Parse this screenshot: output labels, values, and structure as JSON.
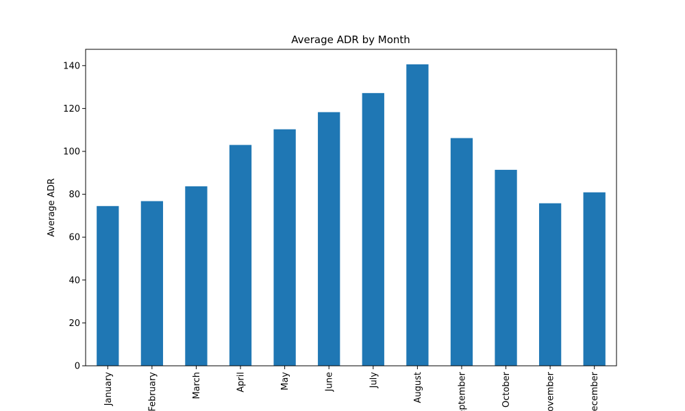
{
  "chart_data": {
    "type": "bar",
    "title": "Average ADR by Month",
    "xlabel": "",
    "ylabel": "Average ADR",
    "categories": [
      "January",
      "February",
      "March",
      "April",
      "May",
      "June",
      "July",
      "August",
      "September",
      "October",
      "November",
      "December"
    ],
    "values": [
      74.5,
      76.8,
      83.7,
      103.0,
      110.3,
      118.3,
      127.2,
      140.6,
      106.2,
      91.4,
      75.8,
      80.9
    ],
    "ylim": [
      0,
      147.6
    ],
    "yticks": [
      0,
      20,
      40,
      60,
      80,
      100,
      120,
      140
    ],
    "bar_color": "#1f77b4",
    "grid": false,
    "legend": "none"
  }
}
